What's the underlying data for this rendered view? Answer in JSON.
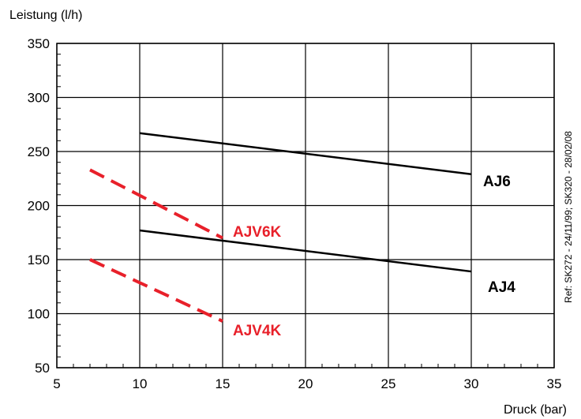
{
  "chart_data": {
    "type": "line",
    "title": "",
    "xlabel": "Druck (bar)",
    "ylabel": "Leistung (l/h)",
    "xlim": [
      5,
      35
    ],
    "ylim": [
      50,
      350
    ],
    "xticks": [
      5,
      10,
      15,
      20,
      25,
      30,
      35
    ],
    "yticks": [
      50,
      100,
      150,
      200,
      250,
      300,
      350
    ],
    "grid": true,
    "series": [
      {
        "name": "AJ6",
        "x": [
          10,
          30
        ],
        "y": [
          267,
          229
        ],
        "color": "#000000",
        "dashed": false
      },
      {
        "name": "AJ4",
        "x": [
          10,
          30
        ],
        "y": [
          177,
          139
        ],
        "color": "#000000",
        "dashed": false
      },
      {
        "name": "AJV6K",
        "x": [
          7,
          15
        ],
        "y": [
          233,
          170
        ],
        "color": "#e8202a",
        "dashed": true
      },
      {
        "name": "AJV4K",
        "x": [
          7,
          15
        ],
        "y": [
          150,
          93
        ],
        "color": "#e8202a",
        "dashed": true
      }
    ],
    "annotation": "Ref: SK272 - 24/11/99; SK320 - 28/02/08"
  }
}
